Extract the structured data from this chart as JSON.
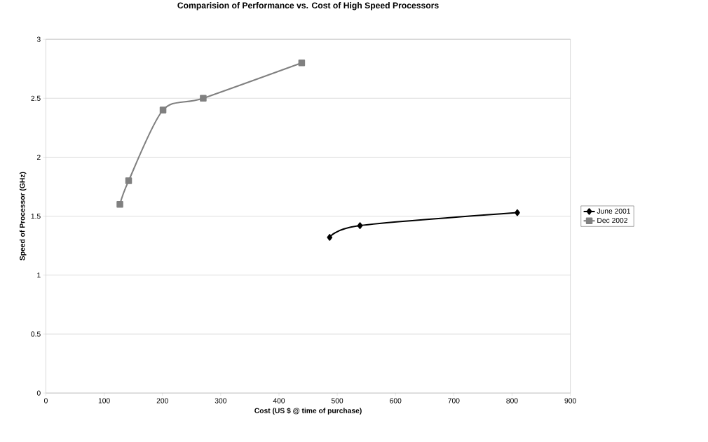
{
  "chart_data": {
    "type": "line",
    "title": "Comparision of Performance vs. Cost of High Speed Processors",
    "xlabel": "Cost (US $ @ time of purchase)",
    "ylabel": "Speed of Processor (GHz)",
    "series": [
      {
        "name": "June 2001",
        "color": "#000000",
        "marker": "diamond",
        "x": [
          487,
          539,
          809
        ],
        "values": [
          1.32,
          1.42,
          1.53
        ]
      },
      {
        "name": "Dec 2002",
        "color": "#808080",
        "marker": "square",
        "x": [
          127,
          142,
          201,
          270,
          439
        ],
        "values": [
          1.6,
          1.8,
          2.4,
          2.5,
          2.8
        ]
      }
    ],
    "xlim": [
      0,
      900
    ],
    "xticks": [
      0,
      100,
      200,
      300,
      400,
      500,
      600,
      700,
      800,
      900
    ],
    "ylim": [
      0,
      3
    ],
    "yticks": [
      0,
      0.5,
      1,
      1.5,
      2,
      2.5,
      3
    ],
    "grid": "y",
    "legend": "right"
  }
}
